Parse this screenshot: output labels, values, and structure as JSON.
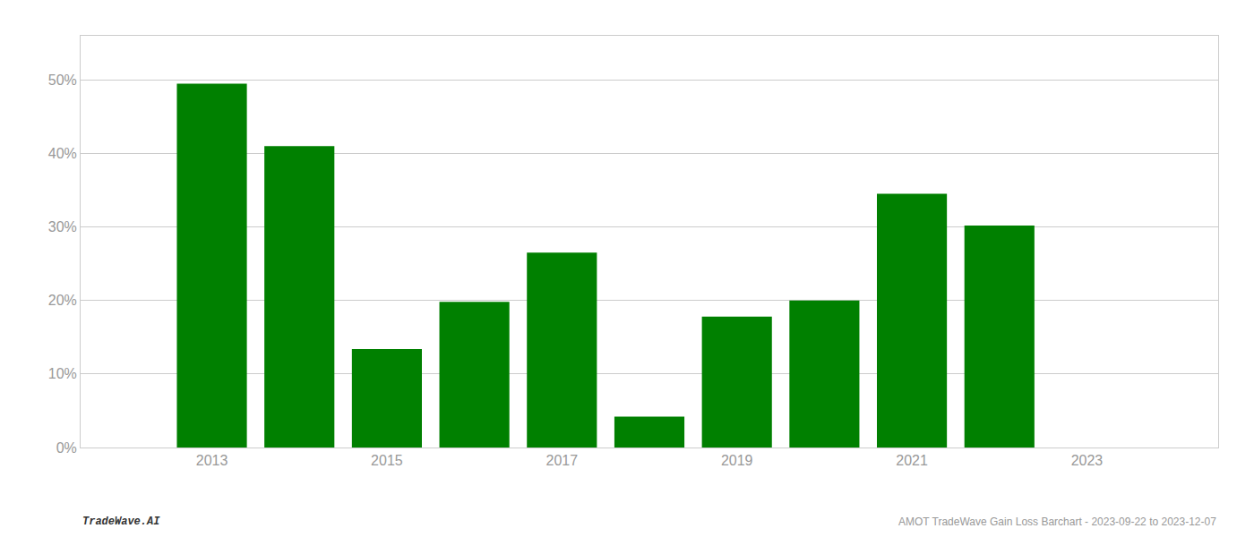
{
  "chart_data": {
    "type": "bar",
    "x": [
      2013,
      2014,
      2015,
      2016,
      2017,
      2018,
      2019,
      2020,
      2021,
      2022
    ],
    "values": [
      0.495,
      0.41,
      0.134,
      0.198,
      0.265,
      0.042,
      0.178,
      0.2,
      0.345,
      0.302
    ],
    "color": "#008000",
    "xlim": [
      2011.5,
      2024.5
    ],
    "xticks": [
      2013,
      2015,
      2017,
      2019,
      2021,
      2023
    ],
    "ylim": [
      0,
      0.56
    ],
    "yticks": [
      {
        "value": 0.0,
        "label": "0%"
      },
      {
        "value": 0.1,
        "label": "10%"
      },
      {
        "value": 0.2,
        "label": "20%"
      },
      {
        "value": 0.3,
        "label": "30%"
      },
      {
        "value": 0.4,
        "label": "40%"
      },
      {
        "value": 0.5,
        "label": "50%"
      }
    ],
    "grid": true,
    "annotations": [
      "TradeWave.AI",
      "AMOT TradeWave Gain Loss Barchart - 2023-09-22 to 2023-12-07"
    ]
  }
}
